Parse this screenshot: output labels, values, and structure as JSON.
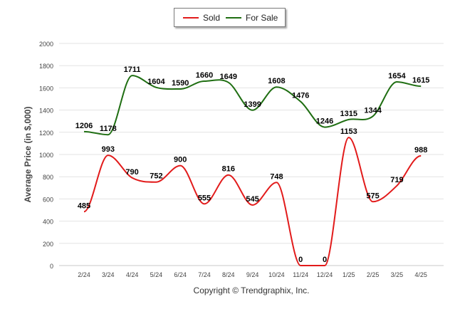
{
  "chart_data": {
    "type": "line",
    "ylabel": "Average Price (in $,000)",
    "ylim": [
      0,
      2000
    ],
    "yticks": [
      0,
      200,
      400,
      600,
      800,
      1000,
      1200,
      1400,
      1600,
      1800,
      2000
    ],
    "grid": true,
    "legend_position": "top-center",
    "categories": [
      "2/24",
      "3/24",
      "4/24",
      "5/24",
      "6/24",
      "7/24",
      "8/24",
      "9/24",
      "10/24",
      "11/24",
      "12/24",
      "1/25",
      "2/25",
      "3/25",
      "4/25"
    ],
    "series": [
      {
        "name": "Sold",
        "color": "#e21b1b",
        "values": [
          485,
          993,
          790,
          752,
          900,
          555,
          816,
          545,
          748,
          0,
          0,
          1153,
          575,
          719,
          988
        ]
      },
      {
        "name": "For Sale",
        "color": "#1f6e12",
        "values": [
          1206,
          1178,
          1711,
          1604,
          1590,
          1660,
          1649,
          1399,
          1608,
          1476,
          1246,
          1315,
          1344,
          1654,
          1615
        ]
      }
    ]
  },
  "footer": {
    "credit": "Copyright © Trendgraphix, Inc."
  }
}
